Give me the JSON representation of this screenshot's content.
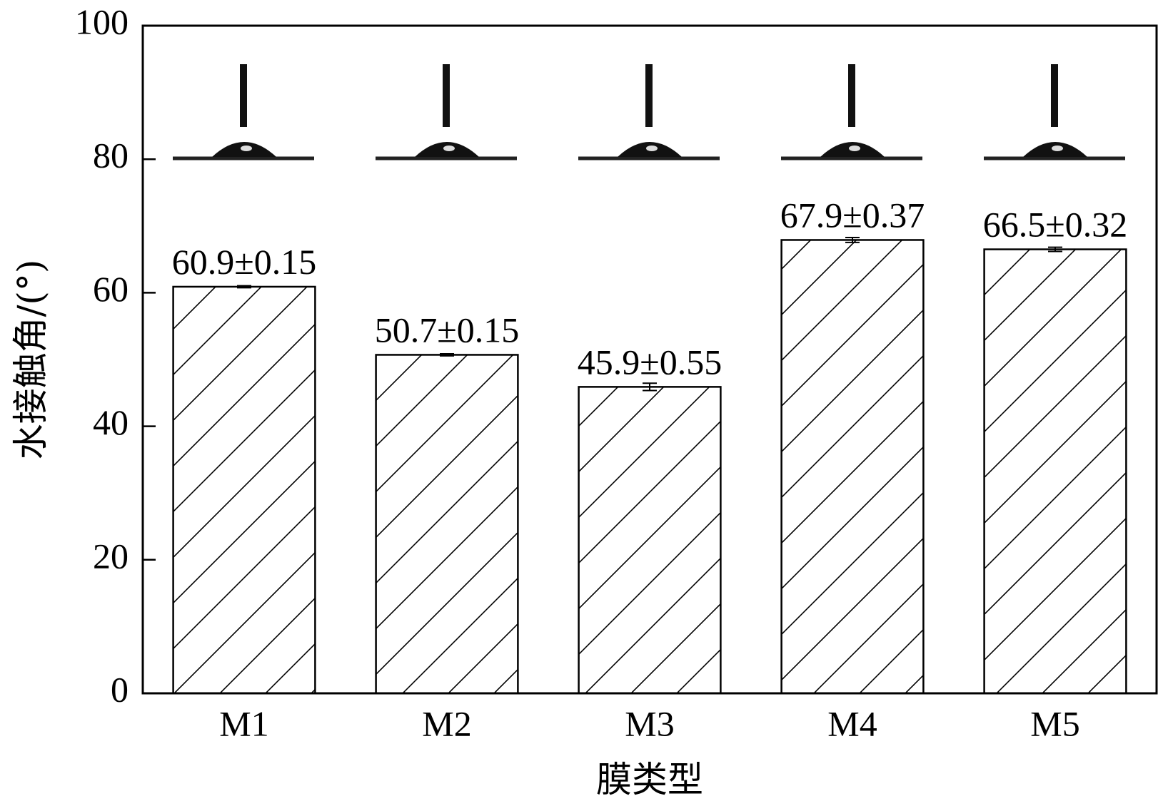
{
  "chart_data": {
    "type": "bar",
    "x_label": "膜类型",
    "y_label": "水接触角/(°)",
    "categories": [
      "M1",
      "M2",
      "M3",
      "M4",
      "M5"
    ],
    "values": [
      60.9,
      50.7,
      45.9,
      67.9,
      66.5
    ],
    "errors": [
      0.15,
      0.15,
      0.55,
      0.37,
      0.32
    ],
    "value_labels": [
      "60.9±0.15",
      "50.7±0.15",
      "45.9±0.55",
      "67.9±0.37",
      "66.5±0.32"
    ],
    "color": "#ffffff",
    "edge_color": "#000000",
    "hatch": "/",
    "ylim": [
      0,
      100
    ],
    "yticks": [
      0,
      20,
      40,
      60,
      80,
      100
    ],
    "grid": false
  }
}
